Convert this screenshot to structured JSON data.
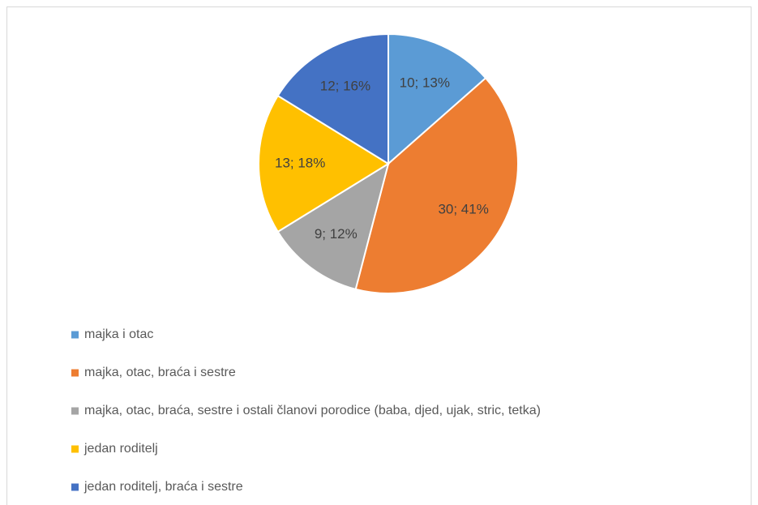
{
  "chart_data": {
    "type": "pie",
    "categories": [
      "majka i otac",
      "majka, otac, braća i sestre",
      "majka, otac, braća, sestre i ostali članovi porodice (baba, djed, ujak, stric, tetka)",
      "jedan roditelj",
      "jedan roditelj, braća i sestre"
    ],
    "values": [
      10,
      30,
      9,
      13,
      12
    ],
    "value_labels": [
      "10; 13%",
      "30; 41%",
      "9; 12%",
      "13; 18%",
      "12; 16%"
    ],
    "colors": [
      "#5b9bd5",
      "#ed7d31",
      "#a5a5a5",
      "#ffc000",
      "#4472c4"
    ],
    "legend": "bottom-left"
  }
}
